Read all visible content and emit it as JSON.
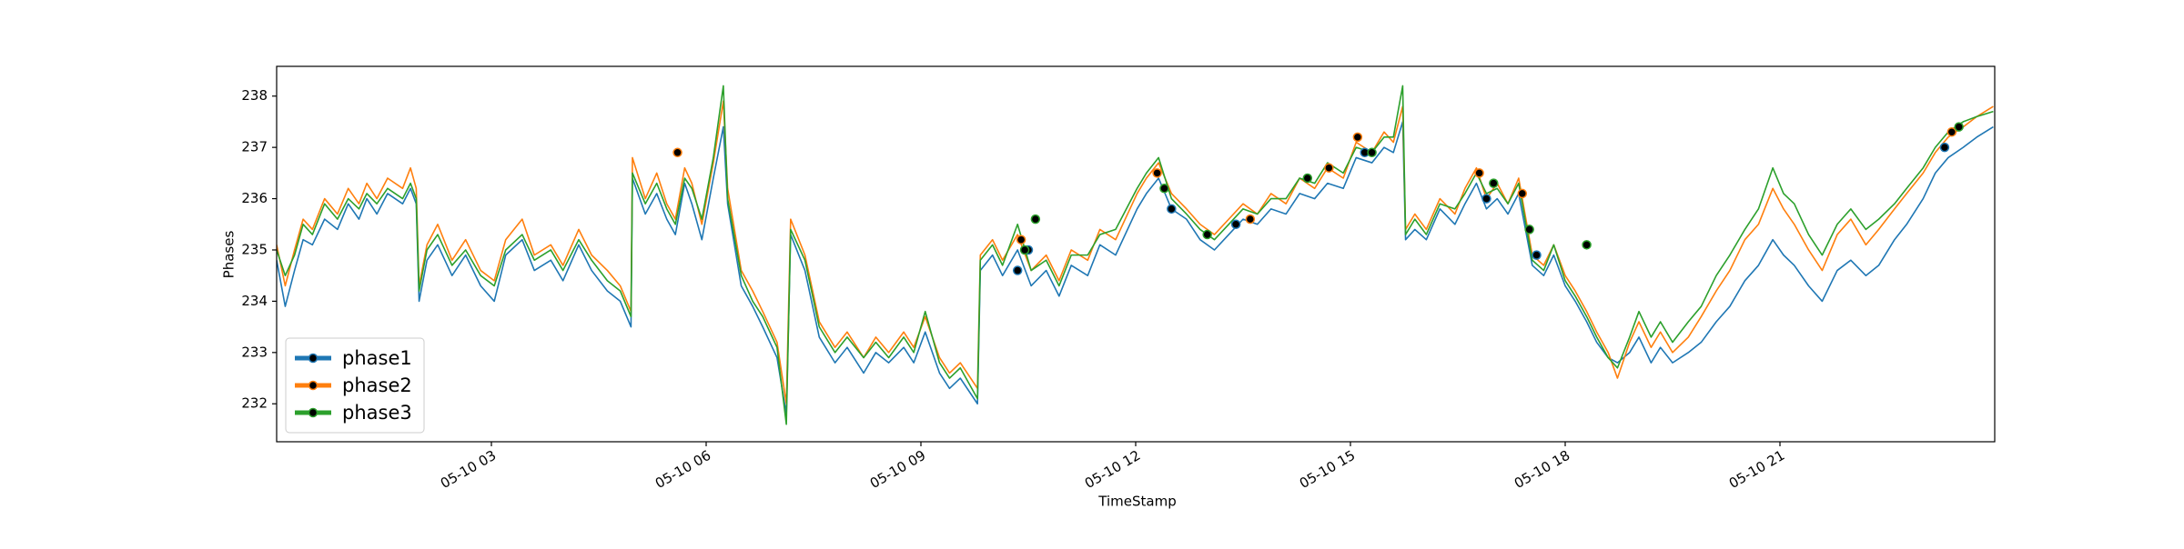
{
  "chart_data": {
    "type": "line",
    "xlabel": "TimeStamp",
    "ylabel": "Phases",
    "xlim": [
      0,
      24
    ],
    "xticks": [
      {
        "value": 3,
        "label": "05-10 03"
      },
      {
        "value": 6,
        "label": "05-10 06"
      },
      {
        "value": 9,
        "label": "05-10 09"
      },
      {
        "value": 12,
        "label": "05-10 12"
      },
      {
        "value": 15,
        "label": "05-10 15"
      },
      {
        "value": 18,
        "label": "05-10 18"
      },
      {
        "value": 21,
        "label": "05-10 21"
      }
    ],
    "ylim": [
      231.26,
      238.58
    ],
    "yticks": [
      232,
      233,
      234,
      235,
      236,
      237,
      238
    ],
    "grid": false,
    "legend": "lower left",
    "x": [
      0,
      0.12,
      0.25,
      0.37,
      0.5,
      0.67,
      0.85,
      1.0,
      1.15,
      1.26,
      1.4,
      1.55,
      1.76,
      1.87,
      1.95,
      1.99,
      2.1,
      2.25,
      2.45,
      2.64,
      2.85,
      3.04,
      3.2,
      3.43,
      3.6,
      3.83,
      4.0,
      4.22,
      4.4,
      4.62,
      4.8,
      4.95,
      4.97,
      5.15,
      5.31,
      5.45,
      5.57,
      5.7,
      5.8,
      5.94,
      6.1,
      6.24,
      6.3,
      6.49,
      6.65,
      6.79,
      6.99,
      7.12,
      7.18,
      7.38,
      7.58,
      7.8,
      7.97,
      8.2,
      8.37,
      8.55,
      8.76,
      8.9,
      9.06,
      9.26,
      9.4,
      9.55,
      9.79,
      9.83,
      10.0,
      10.14,
      10.35,
      10.54,
      10.75,
      10.93,
      11.1,
      11.33,
      11.5,
      11.72,
      12.02,
      12.15,
      12.32,
      12.5,
      12.71,
      12.9,
      13.1,
      13.3,
      13.5,
      13.7,
      13.89,
      14.1,
      14.29,
      14.5,
      14.68,
      14.9,
      15.08,
      15.3,
      15.47,
      15.6,
      15.73,
      15.77,
      15.9,
      16.06,
      16.25,
      16.46,
      16.6,
      16.76,
      16.9,
      17.05,
      17.2,
      17.35,
      17.54,
      17.7,
      17.84,
      18.0,
      18.14,
      18.3,
      18.44,
      18.6,
      18.73,
      18.9,
      19.03,
      19.2,
      19.33,
      19.5,
      19.72,
      19.9,
      20.11,
      20.3,
      20.51,
      20.7,
      20.9,
      21.05,
      21.2,
      21.4,
      21.59,
      21.8,
      21.99,
      22.2,
      22.38,
      22.6,
      22.77,
      23.0,
      23.17,
      23.35,
      23.56,
      23.75,
      23.98
    ],
    "series": [
      {
        "name": "phase1",
        "color": "#1f77b4",
        "values": [
          234.8,
          233.9,
          234.6,
          235.2,
          235.1,
          235.6,
          235.4,
          235.9,
          235.6,
          236.0,
          235.7,
          236.1,
          235.9,
          236.2,
          235.9,
          234.0,
          234.8,
          235.1,
          234.5,
          234.9,
          234.3,
          234.0,
          234.9,
          235.2,
          234.6,
          234.8,
          234.4,
          235.1,
          234.6,
          234.2,
          234.0,
          233.5,
          236.4,
          235.7,
          236.1,
          235.6,
          235.3,
          236.3,
          235.9,
          235.2,
          236.4,
          237.4,
          235.9,
          234.3,
          233.9,
          233.5,
          232.9,
          231.8,
          235.3,
          234.6,
          233.3,
          232.8,
          233.1,
          232.6,
          233.0,
          232.8,
          233.1,
          232.8,
          233.4,
          232.6,
          232.3,
          232.5,
          232.0,
          234.6,
          234.9,
          234.5,
          235.0,
          234.3,
          234.6,
          234.1,
          234.7,
          234.5,
          235.1,
          234.9,
          235.8,
          236.1,
          236.4,
          235.8,
          235.6,
          235.2,
          235.0,
          235.3,
          235.6,
          235.5,
          235.8,
          235.7,
          236.1,
          236.0,
          236.3,
          236.2,
          236.8,
          236.7,
          237.0,
          236.9,
          237.5,
          235.2,
          235.4,
          235.2,
          235.8,
          235.5,
          235.9,
          236.3,
          235.8,
          236.0,
          235.7,
          236.1,
          234.7,
          234.5,
          234.9,
          234.3,
          234.0,
          233.6,
          233.2,
          232.9,
          232.8,
          233.0,
          233.3,
          232.8,
          233.1,
          232.8,
          233.0,
          233.2,
          233.6,
          233.9,
          234.4,
          234.7,
          235.2,
          234.9,
          234.7,
          234.3,
          234.0,
          234.6,
          234.8,
          234.5,
          234.7,
          235.2,
          235.5,
          236.0,
          236.5,
          236.8,
          237.0,
          237.2,
          237.4
        ],
        "marker_points": {
          "x": [
            10.35,
            10.5,
            12.5,
            13.4,
            15.2,
            16.9,
            17.6,
            23.3
          ],
          "values": [
            234.6,
            235.0,
            235.8,
            235.5,
            236.9,
            236.0,
            234.9,
            237.0
          ]
        }
      },
      {
        "name": "phase2",
        "color": "#ff7f0e",
        "values": [
          235.1,
          234.3,
          235.0,
          235.6,
          235.4,
          236.0,
          235.7,
          236.2,
          235.9,
          236.3,
          236.0,
          236.4,
          236.2,
          236.6,
          236.2,
          234.3,
          235.1,
          235.5,
          234.8,
          235.2,
          234.6,
          234.4,
          235.2,
          235.6,
          234.9,
          235.1,
          234.7,
          235.4,
          234.9,
          234.6,
          234.3,
          233.8,
          236.8,
          236.0,
          236.5,
          235.9,
          235.6,
          236.6,
          236.3,
          235.5,
          236.7,
          237.9,
          236.2,
          234.6,
          234.2,
          233.8,
          233.2,
          232.0,
          235.6,
          234.9,
          233.6,
          233.1,
          233.4,
          232.9,
          233.3,
          233.0,
          233.4,
          233.1,
          233.7,
          232.9,
          232.6,
          232.8,
          232.3,
          234.9,
          235.2,
          234.8,
          235.3,
          234.6,
          234.9,
          234.4,
          235.0,
          234.8,
          235.4,
          235.2,
          236.1,
          236.4,
          236.7,
          236.1,
          235.8,
          235.5,
          235.3,
          235.6,
          235.9,
          235.7,
          236.1,
          235.9,
          236.4,
          236.2,
          236.6,
          236.4,
          237.1,
          236.9,
          237.3,
          237.1,
          237.8,
          235.4,
          235.7,
          235.4,
          236.0,
          235.7,
          236.2,
          236.6,
          236.0,
          236.3,
          235.9,
          236.4,
          234.9,
          234.7,
          235.1,
          234.5,
          234.2,
          233.8,
          233.4,
          233.0,
          232.5,
          233.2,
          233.6,
          233.1,
          233.4,
          233.0,
          233.3,
          233.7,
          234.2,
          234.6,
          235.2,
          235.5,
          236.2,
          235.8,
          235.5,
          235.0,
          234.6,
          235.3,
          235.6,
          235.1,
          235.4,
          235.8,
          236.1,
          236.5,
          236.9,
          237.2,
          237.4,
          237.6,
          237.8
        ],
        "marker_points": {
          "x": [
            5.6,
            10.4,
            12.3,
            13.6,
            14.7,
            15.1,
            16.8,
            17.4,
            23.4
          ],
          "values": [
            236.9,
            235.2,
            236.5,
            235.6,
            236.6,
            237.2,
            236.5,
            236.1,
            237.3
          ]
        }
      },
      {
        "name": "phase3",
        "color": "#2ca02c",
        "values": [
          235.0,
          234.5,
          234.9,
          235.5,
          235.3,
          235.9,
          235.6,
          236.0,
          235.8,
          236.1,
          235.9,
          236.2,
          236.0,
          236.3,
          236.0,
          234.2,
          235.0,
          235.3,
          234.7,
          235.0,
          234.5,
          234.3,
          235.0,
          235.3,
          234.8,
          235.0,
          234.6,
          235.2,
          234.8,
          234.4,
          234.2,
          233.7,
          236.5,
          235.9,
          236.3,
          235.8,
          235.5,
          236.4,
          236.2,
          235.6,
          236.8,
          238.2,
          236.0,
          234.5,
          234.0,
          233.7,
          233.1,
          231.6,
          235.4,
          234.8,
          233.5,
          233.0,
          233.3,
          232.9,
          233.2,
          232.9,
          233.3,
          233.0,
          233.8,
          232.8,
          232.5,
          232.7,
          232.1,
          234.8,
          235.1,
          234.7,
          235.5,
          234.6,
          234.8,
          234.3,
          234.9,
          234.9,
          235.3,
          235.4,
          236.2,
          236.5,
          236.8,
          236.0,
          235.7,
          235.4,
          235.2,
          235.5,
          235.8,
          235.7,
          236.0,
          236.0,
          236.4,
          236.3,
          236.7,
          236.5,
          237.0,
          236.9,
          237.2,
          237.2,
          238.2,
          235.3,
          235.6,
          235.3,
          235.9,
          235.8,
          236.1,
          236.5,
          236.1,
          236.2,
          235.9,
          236.3,
          234.8,
          234.6,
          235.1,
          234.4,
          234.1,
          233.7,
          233.3,
          232.9,
          232.7,
          233.3,
          233.8,
          233.3,
          233.6,
          233.2,
          233.6,
          233.9,
          234.5,
          234.9,
          235.4,
          235.8,
          236.6,
          236.1,
          235.9,
          235.3,
          234.9,
          235.5,
          235.8,
          235.4,
          235.6,
          235.9,
          236.2,
          236.6,
          237.0,
          237.3,
          237.5,
          237.6,
          237.7
        ],
        "marker_points": {
          "x": [
            10.45,
            10.6,
            12.4,
            13.0,
            14.4,
            15.3,
            17.0,
            17.5,
            18.3,
            23.5
          ],
          "values": [
            235.0,
            235.6,
            236.2,
            235.3,
            236.4,
            236.9,
            236.3,
            235.4,
            235.1,
            237.4
          ]
        }
      }
    ]
  }
}
